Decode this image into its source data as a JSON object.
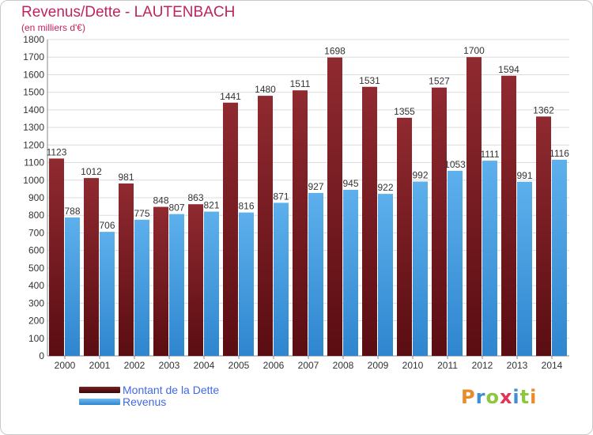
{
  "chart_data": {
    "type": "bar",
    "title": "Revenus/Dette - LAUTENBACH",
    "subtitle": "(en milliers d'€)",
    "categories": [
      "2000",
      "2001",
      "2002",
      "2003",
      "2004",
      "2005",
      "2006",
      "2007",
      "2008",
      "2009",
      "2010",
      "2011",
      "2012",
      "2013",
      "2014"
    ],
    "series": [
      {
        "name": "Montant de la Dette",
        "color": "#7a1f25",
        "values": [
          1123,
          1012,
          981,
          848,
          863,
          1441,
          1480,
          1511,
          1698,
          1531,
          1355,
          1527,
          1700,
          1594,
          1362
        ]
      },
      {
        "name": "Revenus",
        "color": "#4ea6e6",
        "values": [
          788,
          706,
          775,
          807,
          821,
          816,
          871,
          927,
          945,
          922,
          992,
          1053,
          1111,
          991,
          1116
        ]
      }
    ],
    "ylim": [
      0,
      1800
    ],
    "yticks": [
      0,
      100,
      200,
      300,
      400,
      500,
      600,
      700,
      800,
      900,
      1000,
      1100,
      1200,
      1300,
      1400,
      1500,
      1600,
      1700,
      1800
    ],
    "grid": true,
    "legend_position": "bottom-left"
  },
  "brand": {
    "letters": [
      {
        "ch": "P",
        "color": "#e98b2a"
      },
      {
        "ch": "r",
        "color": "#3f8fd4"
      },
      {
        "ch": "o",
        "color": "#8dc63f"
      },
      {
        "ch": "x",
        "color": "#e0345b"
      },
      {
        "ch": "i",
        "color": "#3f8fd4"
      },
      {
        "ch": "t",
        "color": "#8dc63f"
      },
      {
        "ch": "i",
        "color": "#e98b2a"
      }
    ]
  }
}
